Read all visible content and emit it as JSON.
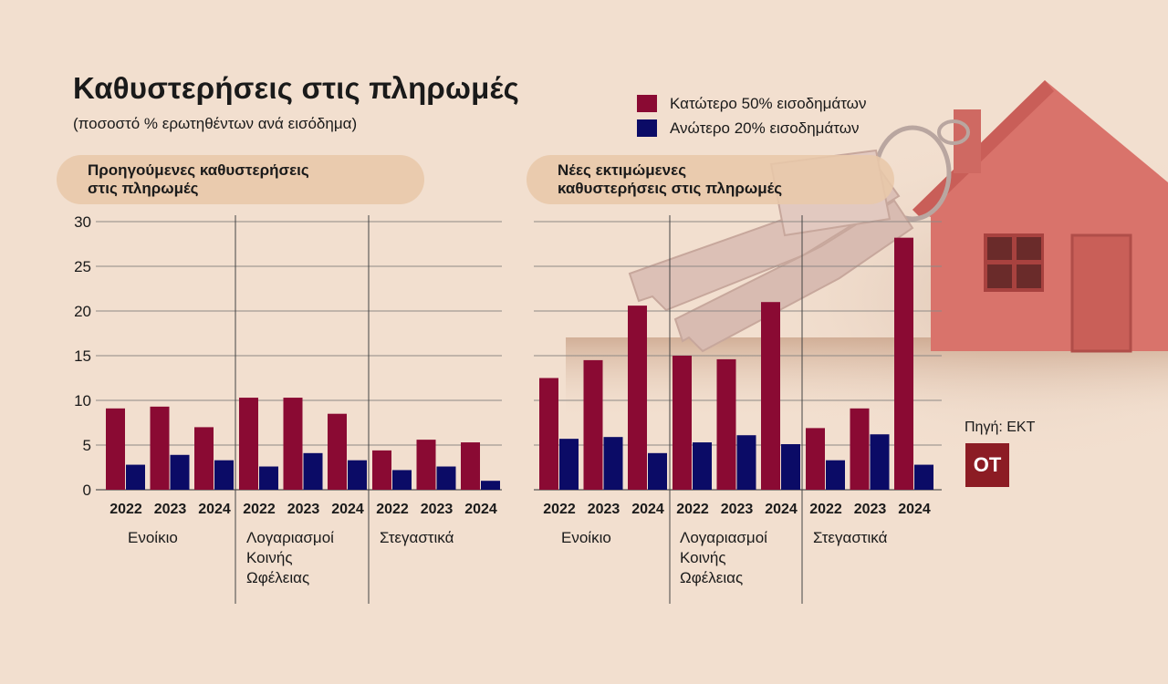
{
  "title": "Καθυστερήσεις στις πληρωμές",
  "subtitle": "(ποσοστό % ερωτηθέντων ανά εισόδημα)",
  "legend": [
    {
      "label": "Κατώτερο 50% εισοδημάτων",
      "color": "#8a0a33"
    },
    {
      "label": "Ανώτερο 20% εισοδημάτων",
      "color": "#0b0b66"
    }
  ],
  "source": "Πηγή: ΕΚΤ",
  "logo_text": "ΟΤ",
  "colors": {
    "bottom50": "#8a0a33",
    "top20": "#0b0b66"
  },
  "chart_data": [
    {
      "type": "bar",
      "title": "Προηγούμενες καθυστερήσεις\nστις πληρωμές",
      "ylim": [
        0,
        30
      ],
      "yticks": [
        0,
        5,
        10,
        15,
        20,
        25,
        30
      ],
      "groups": [
        {
          "label": "Ενοίκιο",
          "years": [
            "2022",
            "2023",
            "2024"
          ],
          "series": [
            {
              "name": "Κατώτερο 50% εισοδημάτων",
              "values": [
                9.1,
                9.3,
                7.0
              ]
            },
            {
              "name": "Ανώτερο 20% εισοδημάτων",
              "values": [
                2.8,
                3.9,
                3.3
              ]
            }
          ]
        },
        {
          "label": "Λογαριασμοί\nΚοινής\nΩφέλειας",
          "years": [
            "2022",
            "2023",
            "2024"
          ],
          "series": [
            {
              "name": "Κατώτερο 50% εισοδημάτων",
              "values": [
                10.3,
                10.3,
                8.5
              ]
            },
            {
              "name": "Ανώτερο 20% εισοδημάτων",
              "values": [
                2.6,
                4.1,
                3.3
              ]
            }
          ]
        },
        {
          "label": "Στεγαστικά",
          "years": [
            "2022",
            "2023",
            "2024"
          ],
          "series": [
            {
              "name": "Κατώτερο 50% εισοδημάτων",
              "values": [
                4.4,
                5.6,
                5.3
              ]
            },
            {
              "name": "Ανώτερο 20% εισοδημάτων",
              "values": [
                2.2,
                2.6,
                1.0
              ]
            }
          ]
        }
      ]
    },
    {
      "type": "bar",
      "title": "Νέες εκτιμώμενες\nκαθυστερήσεις στις πληρωμές",
      "ylim": [
        0,
        30
      ],
      "groups": [
        {
          "label": "Ενοίκιο",
          "years": [
            "2022",
            "2023",
            "2024"
          ],
          "series": [
            {
              "name": "Κατώτερο 50% εισοδημάτων",
              "values": [
                12.5,
                14.5,
                20.6
              ]
            },
            {
              "name": "Ανώτερο 20% εισοδημάτων",
              "values": [
                5.7,
                5.9,
                4.1
              ]
            }
          ]
        },
        {
          "label": "Λογαριασμοί\nΚοινής\nΩφέλειας",
          "years": [
            "2022",
            "2023",
            "2024"
          ],
          "series": [
            {
              "name": "Κατώτερο 50% εισοδημάτων",
              "values": [
                15.0,
                14.6,
                21.0
              ]
            },
            {
              "name": "Ανώτερο 20% εισοδημάτων",
              "values": [
                5.3,
                6.1,
                5.1
              ]
            }
          ]
        },
        {
          "label": "Στεγαστικά",
          "years": [
            "2022",
            "2023",
            "2024"
          ],
          "series": [
            {
              "name": "Κατώτερο 50% εισοδημάτων",
              "values": [
                6.9,
                9.1,
                28.2
              ]
            },
            {
              "name": "Ανώτερο 20% εισοδημάτων",
              "values": [
                3.3,
                6.2,
                2.8
              ]
            }
          ]
        }
      ]
    }
  ]
}
